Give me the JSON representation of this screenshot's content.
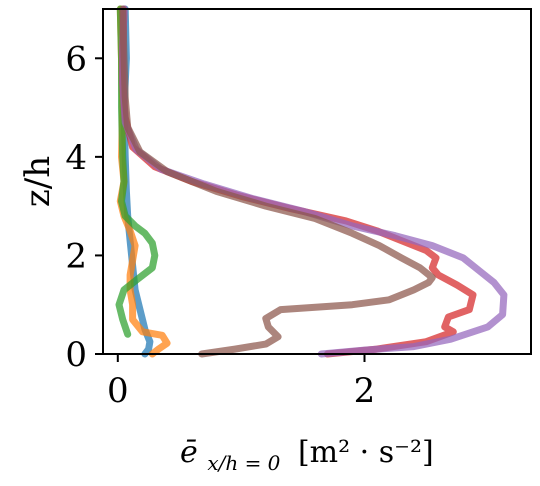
{
  "chart_data": {
    "type": "line",
    "title": "",
    "ylabel": "z/h",
    "xlabel": {
      "main": "ē",
      "sub": "x/h = 0",
      "unit": "[m² · s⁻²]"
    },
    "xlim": [
      -0.12,
      3.35
    ],
    "ylim": [
      0,
      7
    ],
    "xticks": [
      0,
      2
    ],
    "yticks": [
      0,
      2,
      4,
      6
    ],
    "xtick_labels": [
      "0",
      "2"
    ],
    "ytick_labels": [
      "0",
      "2",
      "4",
      "6"
    ],
    "grid": false,
    "legend": "none",
    "series": [
      {
        "color": "#1f77b4",
        "points": [
          [
            0.22,
            0.0
          ],
          [
            0.25,
            0.1
          ],
          [
            0.26,
            0.25
          ],
          [
            0.22,
            0.5
          ],
          [
            0.18,
            0.9
          ],
          [
            0.14,
            1.3
          ],
          [
            0.12,
            1.8
          ],
          [
            0.1,
            2.3
          ],
          [
            0.08,
            2.8
          ],
          [
            0.07,
            3.3
          ],
          [
            0.06,
            4.0
          ],
          [
            0.05,
            5.0
          ],
          [
            0.07,
            6.0
          ],
          [
            0.06,
            7.0
          ]
        ]
      },
      {
        "color": "#ff7f0e",
        "points": [
          [
            0.28,
            0.0
          ],
          [
            0.33,
            0.1
          ],
          [
            0.4,
            0.22
          ],
          [
            0.36,
            0.38
          ],
          [
            0.2,
            0.45
          ],
          [
            0.12,
            0.7
          ],
          [
            0.12,
            1.0
          ],
          [
            0.1,
            1.3
          ],
          [
            0.1,
            1.6
          ],
          [
            0.12,
            1.9
          ],
          [
            0.14,
            2.2
          ],
          [
            0.1,
            2.5
          ],
          [
            0.05,
            2.8
          ],
          [
            0.02,
            3.1
          ],
          [
            0.05,
            3.5
          ],
          [
            0.03,
            4.0
          ],
          [
            0.04,
            5.0
          ],
          [
            0.03,
            6.0
          ],
          [
            0.02,
            7.0
          ]
        ]
      },
      {
        "color": "#2ca02c",
        "points": [
          [
            0.08,
            0.4
          ],
          [
            0.04,
            0.7
          ],
          [
            0.01,
            1.0
          ],
          [
            0.05,
            1.3
          ],
          [
            0.15,
            1.5
          ],
          [
            0.28,
            1.75
          ],
          [
            0.3,
            2.0
          ],
          [
            0.28,
            2.25
          ],
          [
            0.22,
            2.45
          ],
          [
            0.14,
            2.6
          ],
          [
            0.06,
            2.8
          ],
          [
            0.03,
            3.1
          ],
          [
            0.05,
            3.5
          ],
          [
            0.04,
            4.0
          ],
          [
            0.03,
            5.0
          ],
          [
            0.03,
            6.0
          ],
          [
            0.02,
            7.0
          ]
        ]
      },
      {
        "color": "#d62728",
        "points": [
          [
            1.7,
            0.0
          ],
          [
            2.1,
            0.1
          ],
          [
            2.5,
            0.25
          ],
          [
            2.72,
            0.45
          ],
          [
            2.65,
            0.55
          ],
          [
            2.68,
            0.75
          ],
          [
            2.85,
            0.9
          ],
          [
            2.88,
            1.2
          ],
          [
            2.75,
            1.4
          ],
          [
            2.6,
            1.6
          ],
          [
            2.55,
            1.75
          ],
          [
            2.58,
            1.95
          ],
          [
            2.5,
            2.1
          ],
          [
            2.35,
            2.25
          ],
          [
            2.1,
            2.5
          ],
          [
            1.85,
            2.7
          ],
          [
            1.4,
            2.95
          ],
          [
            1.0,
            3.2
          ],
          [
            0.6,
            3.5
          ],
          [
            0.3,
            3.8
          ],
          [
            0.12,
            4.2
          ],
          [
            0.06,
            4.8
          ],
          [
            0.04,
            5.5
          ],
          [
            0.04,
            6.2
          ],
          [
            0.05,
            7.0
          ]
        ]
      },
      {
        "color": "#9467bd",
        "points": [
          [
            1.65,
            0.0
          ],
          [
            2.0,
            0.08
          ],
          [
            2.4,
            0.15
          ],
          [
            2.7,
            0.3
          ],
          [
            3.0,
            0.55
          ],
          [
            3.12,
            0.8
          ],
          [
            3.13,
            1.2
          ],
          [
            3.05,
            1.45
          ],
          [
            2.95,
            1.65
          ],
          [
            2.8,
            1.95
          ],
          [
            2.55,
            2.2
          ],
          [
            2.25,
            2.4
          ],
          [
            1.9,
            2.6
          ],
          [
            1.5,
            2.9
          ],
          [
            1.1,
            3.15
          ],
          [
            0.7,
            3.45
          ],
          [
            0.35,
            3.75
          ],
          [
            0.15,
            4.15
          ],
          [
            0.06,
            4.7
          ],
          [
            0.04,
            5.5
          ],
          [
            0.04,
            6.2
          ],
          [
            0.05,
            7.0
          ]
        ]
      },
      {
        "color": "#8c564b",
        "points": [
          [
            0.68,
            0.0
          ],
          [
            0.95,
            0.1
          ],
          [
            1.2,
            0.2
          ],
          [
            1.3,
            0.35
          ],
          [
            1.22,
            0.55
          ],
          [
            1.2,
            0.72
          ],
          [
            1.32,
            0.9
          ],
          [
            1.9,
            1.0
          ],
          [
            2.2,
            1.1
          ],
          [
            2.4,
            1.3
          ],
          [
            2.52,
            1.45
          ],
          [
            2.55,
            1.55
          ],
          [
            2.45,
            1.75
          ],
          [
            2.3,
            1.95
          ],
          [
            2.12,
            2.2
          ],
          [
            1.9,
            2.45
          ],
          [
            1.6,
            2.75
          ],
          [
            1.2,
            3.0
          ],
          [
            0.8,
            3.3
          ],
          [
            0.4,
            3.7
          ],
          [
            0.18,
            4.1
          ],
          [
            0.08,
            4.6
          ],
          [
            0.06,
            5.2
          ],
          [
            0.05,
            6.0
          ],
          [
            0.04,
            7.0
          ]
        ]
      }
    ]
  }
}
